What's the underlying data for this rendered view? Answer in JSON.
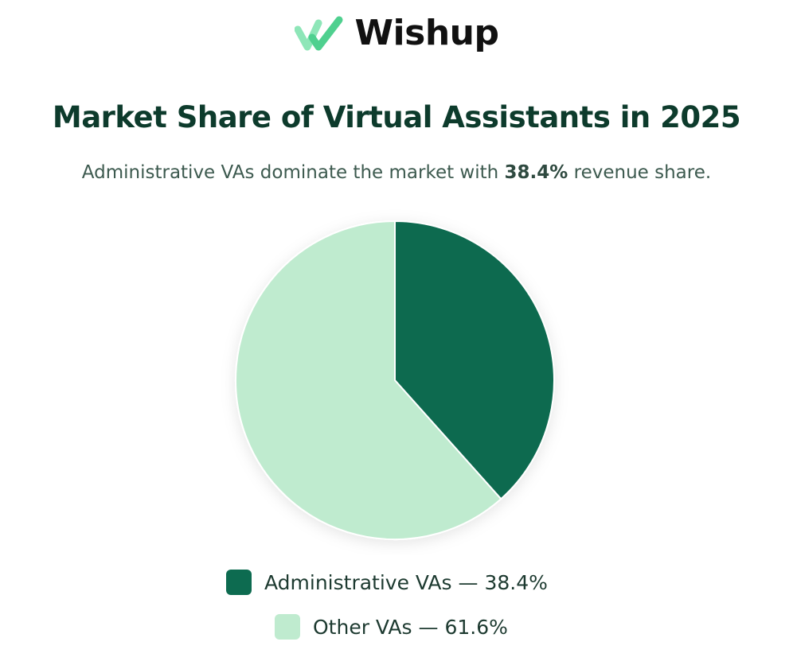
{
  "brand": {
    "name": "Wishup",
    "logo_color": "#5fd99a"
  },
  "header": {
    "title": "Market Share of Virtual Assistants in 2025",
    "subtitle_prefix": "Administrative VAs dominate the market with ",
    "subtitle_highlight": "38.4%",
    "subtitle_suffix": " revenue share."
  },
  "chart_data": {
    "type": "pie",
    "title": "Market Share of Virtual Assistants in 2025",
    "slices": [
      {
        "label": "Administrative VAs",
        "value": 38.4,
        "color": "#0d6b50"
      },
      {
        "label": "Other VAs",
        "value": 61.6,
        "color": "#bfebcf"
      }
    ],
    "legend_placement": "bottom"
  },
  "legend": {
    "items": [
      {
        "text": "Administrative VAs — 38.4%",
        "color": "#0d6b50"
      },
      {
        "text": "Other VAs — 61.6%",
        "color": "#bfebcf"
      }
    ]
  }
}
